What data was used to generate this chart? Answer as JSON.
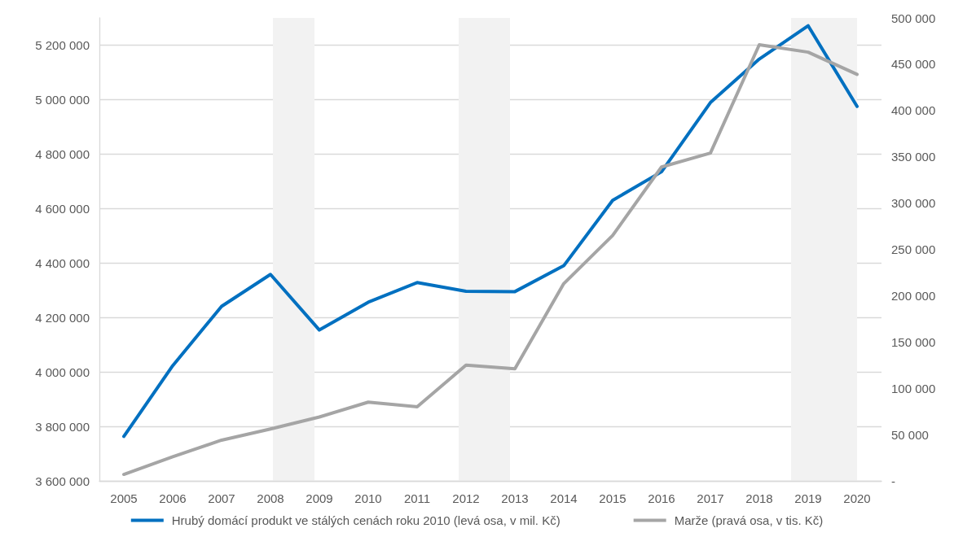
{
  "chart_data": {
    "type": "line",
    "x": [
      2005,
      2006,
      2007,
      2008,
      2009,
      2010,
      2011,
      2012,
      2013,
      2014,
      2015,
      2016,
      2017,
      2018,
      2019,
      2020
    ],
    "xlim": [
      2004.5,
      2020.5
    ],
    "xticks": [
      2005,
      2006,
      2007,
      2008,
      2009,
      2010,
      2011,
      2012,
      2013,
      2014,
      2015,
      2016,
      2017,
      2018,
      2019,
      2020
    ],
    "ylim": [
      3600000,
      5300000
    ],
    "yticks": [
      {
        "value": 3600000,
        "label": "3 600 000"
      },
      {
        "value": 3800000,
        "label": "3 800 000"
      },
      {
        "value": 4000000,
        "label": "4 000 000"
      },
      {
        "value": 4200000,
        "label": "4 200 000"
      },
      {
        "value": 4400000,
        "label": "4 400 000"
      },
      {
        "value": 4600000,
        "label": "4 600 000"
      },
      {
        "value": 4800000,
        "label": "4 800 000"
      },
      {
        "value": 5000000,
        "label": "5 000 000"
      },
      {
        "value": 5200000,
        "label": "5 200 000"
      }
    ],
    "y2lim": [
      0,
      500000
    ],
    "y2ticks": [
      {
        "value": 0,
        "label": "-"
      },
      {
        "value": 50000,
        "label": "50 000"
      },
      {
        "value": 100000,
        "label": "100 000"
      },
      {
        "value": 150000,
        "label": "150 000"
      },
      {
        "value": 200000,
        "label": "200 000"
      },
      {
        "value": 250000,
        "label": "250 000"
      },
      {
        "value": 300000,
        "label": "300 000"
      },
      {
        "value": 350000,
        "label": "350 000"
      },
      {
        "value": 400000,
        "label": "400 000"
      },
      {
        "value": 450000,
        "label": "450 000"
      },
      {
        "value": 500000,
        "label": "500 000"
      }
    ],
    "series": [
      {
        "name": "Hrubý domácí produkt ve stálých cenách roku 2010 (levá osa, v mil. Kč)",
        "color": "#0070c0",
        "values": [
          3763000,
          4023000,
          4241000,
          4358000,
          4154000,
          4256000,
          4328000,
          4296000,
          4295000,
          4390000,
          4630000,
          4735000,
          4989000,
          5149000,
          5271000,
          4975000
        ]
      },
      {
        "name": "Marže (pravá osa, v tis. Kč)",
        "color": "#a5a5a5",
        "axis": "y2",
        "values": [
          7000,
          26000,
          44000,
          56000,
          69000,
          85000,
          80000,
          125000,
          121000,
          213000,
          265000,
          339000,
          354000,
          471000,
          463000,
          439000
        ]
      }
    ],
    "bands": [
      {
        "axis": "x",
        "from": 2008.05,
        "to": 2008.9,
        "color": "#f2f2f2"
      },
      {
        "axis": "x",
        "from": 2011.85,
        "to": 2012.9,
        "color": "#f2f2f2"
      },
      {
        "axis": "x",
        "from": 2018.65,
        "to": 2020,
        "color": "#f2f2f2"
      }
    ],
    "grid": "y",
    "legend": "bottom",
    "marker": "none",
    "line_style": "solid"
  }
}
